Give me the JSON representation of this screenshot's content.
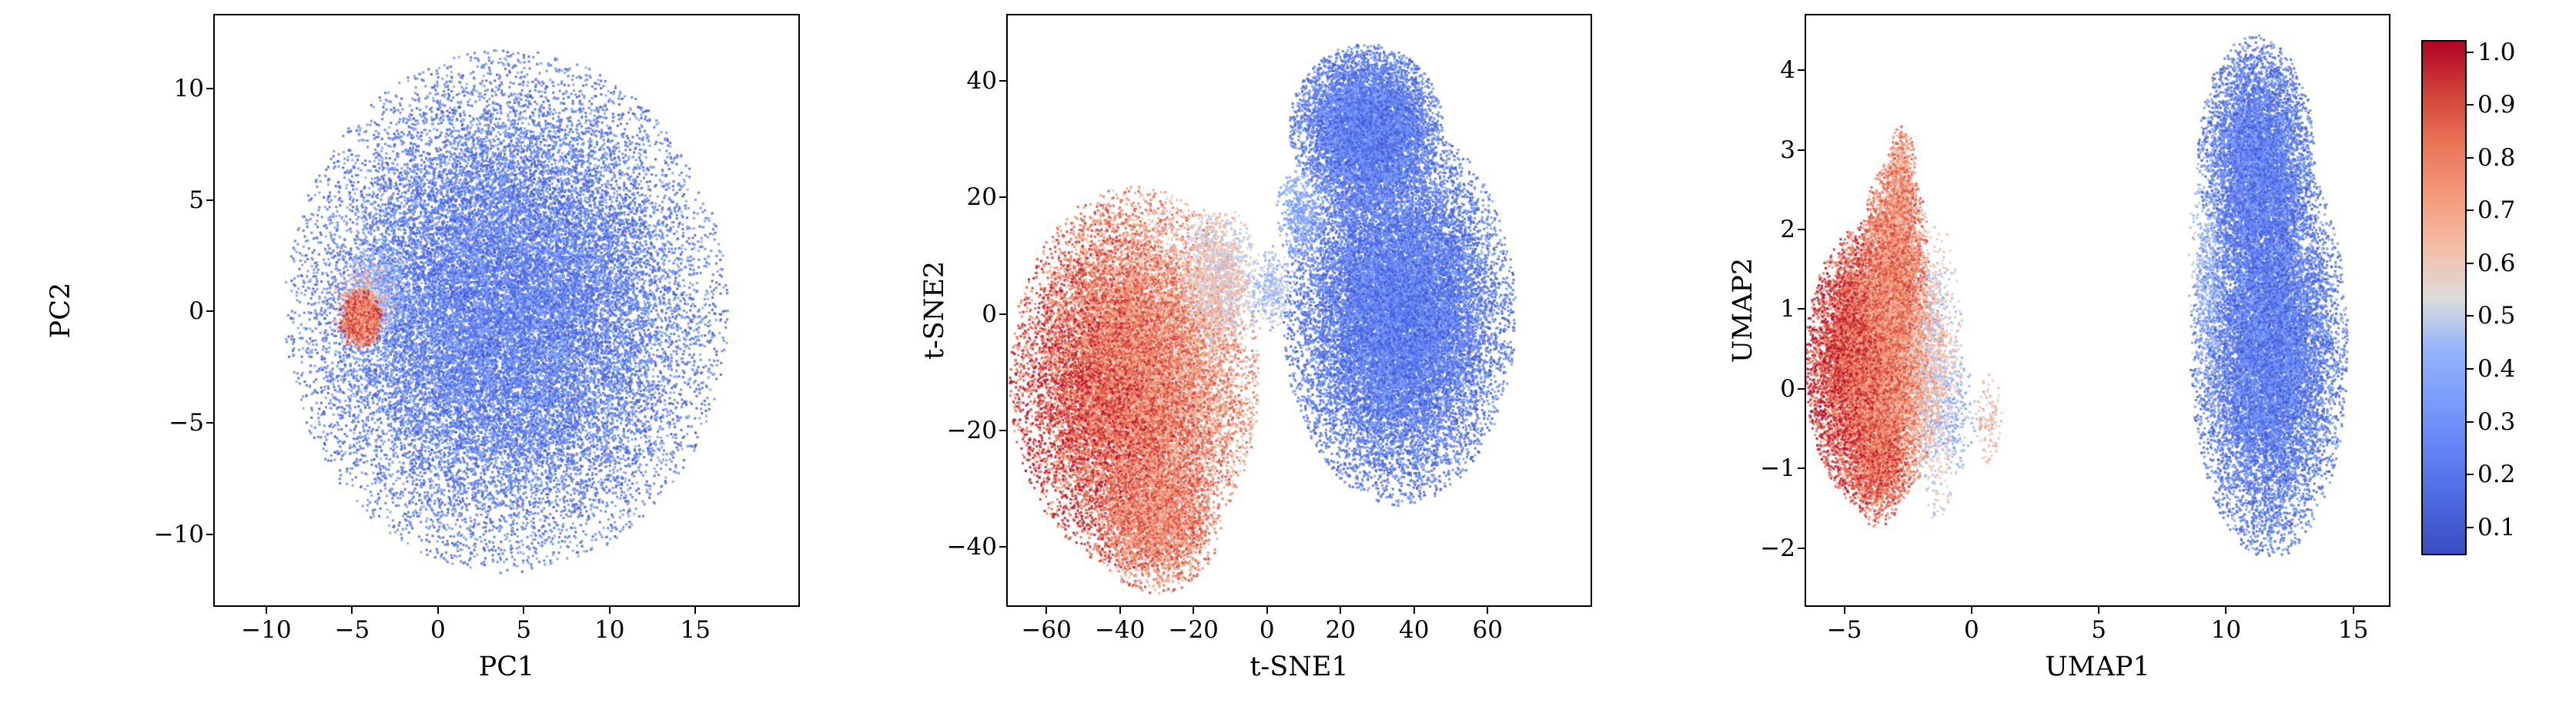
{
  "figure": {
    "background": "#ffffff"
  },
  "colormap": {
    "name": "coolwarm",
    "vmin": 0.05,
    "vmax": 1.02,
    "stops": [
      {
        "t": 0.0,
        "color": "#3b4cc0"
      },
      {
        "t": 0.1,
        "color": "#4b68e0"
      },
      {
        "t": 0.2,
        "color": "#6282f5"
      },
      {
        "t": 0.3,
        "color": "#7a9dfc"
      },
      {
        "t": 0.4,
        "color": "#95b4fb"
      },
      {
        "t": 0.5,
        "color": "#dddcdb"
      },
      {
        "t": 0.6,
        "color": "#f4bda5"
      },
      {
        "t": 0.7,
        "color": "#f49a7b"
      },
      {
        "t": 0.8,
        "color": "#eb7558"
      },
      {
        "t": 0.9,
        "color": "#d14239"
      },
      {
        "t": 1.0,
        "color": "#b40426"
      }
    ]
  },
  "colorbar": {
    "ticks": [
      1.0,
      0.9,
      0.8,
      0.7,
      0.6,
      0.5,
      0.4,
      0.3,
      0.2,
      0.1
    ],
    "tick_labels": [
      "1.0",
      "0.9",
      "0.8",
      "0.7",
      "0.6",
      "0.5",
      "0.4",
      "0.3",
      "0.2",
      "0.1"
    ]
  },
  "chart_data": [
    {
      "type": "scatter",
      "title": "",
      "xlabel": "PC1",
      "ylabel": "PC2",
      "xlim": [
        -13.0,
        21.0
      ],
      "ylim": [
        -13.2,
        13.3
      ],
      "xticks": [
        -10,
        -5,
        0,
        5,
        10,
        15
      ],
      "xtick_labels": [
        "−10",
        "−5",
        "0",
        "5",
        "10",
        "15"
      ],
      "yticks": [
        -10,
        -5,
        0,
        5,
        10
      ],
      "ytick_labels": [
        "−10",
        "−5",
        "0",
        "5",
        "10"
      ],
      "grid": false,
      "legend": false,
      "clusters": [
        {
          "name": "low-value-main-blob",
          "n": 26000,
          "cx": 4.0,
          "cy": 0.0,
          "sx": 5.5,
          "sy": 5.0,
          "clip": 2.35,
          "vlo": 0.08,
          "vhi": 0.4
        },
        {
          "name": "transition-halo",
          "n": 500,
          "cx": -3.6,
          "cy": 1.1,
          "sx": 0.9,
          "sy": 1.0,
          "clip": 2.2,
          "vlo": 0.3,
          "vhi": 0.55
        },
        {
          "name": "high-value-fringe",
          "n": 350,
          "cx": -4.3,
          "cy": 0.3,
          "sx": 0.9,
          "sy": 0.95,
          "clip": 2.2,
          "vlo": 0.5,
          "vhi": 0.8
        },
        {
          "name": "high-value-core",
          "n": 1500,
          "cx": -4.5,
          "cy": -0.3,
          "sx": 0.5,
          "sy": 0.55,
          "clip": 2.5,
          "vlo": 0.6,
          "vhi": 1.0
        }
      ]
    },
    {
      "type": "scatter",
      "title": "",
      "xlabel": "t-SNE1",
      "ylabel": "t-SNE2",
      "xlim": [
        -70.5,
        88.0
      ],
      "ylim": [
        -50.0,
        51.2
      ],
      "xticks": [
        -60,
        -40,
        -20,
        0,
        20,
        40,
        60
      ],
      "xtick_labels": [
        "−60",
        "−40",
        "−20",
        "0",
        "20",
        "40",
        "60"
      ],
      "yticks": [
        -40,
        -20,
        0,
        20,
        40
      ],
      "ytick_labels": [
        "−40",
        "−20",
        "0",
        "20",
        "40"
      ],
      "grid": false,
      "legend": false,
      "clusters": [
        {
          "name": "high-value-cluster",
          "n": 19000,
          "cx": -36,
          "cy": -11,
          "sx": 14.5,
          "sy": 14.0,
          "clip": 2.35,
          "vlo": 0.6,
          "vhi": 1.0,
          "vgx": -0.05,
          "vgy": -0.03
        },
        {
          "name": "high-value-bottom-lumps",
          "n": 2600,
          "cx": -30,
          "cy": -36,
          "sx": 8.0,
          "sy": 5.5,
          "clip": 2.2,
          "vlo": 0.6,
          "vhi": 0.95
        },
        {
          "name": "high-value-light-edge",
          "n": 1100,
          "cx": -13,
          "cy": 7,
          "sx": 4.5,
          "sy": 5.5,
          "clip": 2.2,
          "vlo": 0.45,
          "vhi": 0.7
        },
        {
          "name": "bridge-points",
          "n": 350,
          "cx": 1,
          "cy": 4,
          "sx": 3.0,
          "sy": 3.5,
          "clip": 2.2,
          "vlo": 0.38,
          "vhi": 0.55
        },
        {
          "name": "low-value-cluster",
          "n": 19000,
          "cx": 36,
          "cy": 0,
          "sx": 13.5,
          "sy": 14.0,
          "clip": 2.35,
          "vlo": 0.08,
          "vhi": 0.38
        },
        {
          "name": "low-value-top-lobe",
          "n": 7500,
          "cx": 27,
          "cy": 32,
          "sx": 9.5,
          "sy": 6.5,
          "clip": 2.2,
          "vlo": 0.08,
          "vhi": 0.38
        },
        {
          "name": "low-value-light-specks",
          "n": 450,
          "cx": 9,
          "cy": 17,
          "sx": 3.0,
          "sy": 4.0,
          "clip": 2.2,
          "vlo": 0.3,
          "vhi": 0.48
        }
      ]
    },
    {
      "type": "scatter",
      "title": "",
      "xlabel": "UMAP1",
      "ylabel": "UMAP2",
      "xlim": [
        -6.5,
        16.4
      ],
      "ylim": [
        -2.72,
        4.69
      ],
      "xticks": [
        -5,
        0,
        5,
        10,
        15
      ],
      "xtick_labels": [
        "−5",
        "0",
        "5",
        "10",
        "15"
      ],
      "yticks": [
        -2,
        -1,
        0,
        1,
        2,
        3,
        4
      ],
      "ytick_labels": [
        "−2",
        "−1",
        "0",
        "1",
        "2",
        "3",
        "4"
      ],
      "grid": false,
      "legend": false,
      "clusters": [
        {
          "name": "high-value-main",
          "n": 13500,
          "cx": -3.8,
          "cy": 0.3,
          "sx": 1.2,
          "sy": 0.8,
          "clip": 2.3,
          "vlo": 0.62,
          "vhi": 1.0,
          "vgx": -0.07
        },
        {
          "name": "high-value-taper",
          "n": 3000,
          "cx": -3.0,
          "cy": 1.7,
          "sx": 0.6,
          "sy": 0.55,
          "clip": 2.2,
          "vlo": 0.6,
          "vhi": 0.95
        },
        {
          "name": "high-value-top-tip",
          "n": 700,
          "cx": -2.75,
          "cy": 2.6,
          "sx": 0.3,
          "sy": 0.35,
          "clip": 2.0,
          "vlo": 0.55,
          "vhi": 0.9
        },
        {
          "name": "high-value-bottom-tip",
          "n": 800,
          "cx": -3.6,
          "cy": -1.0,
          "sx": 0.55,
          "sy": 0.35,
          "clip": 2.2,
          "vlo": 0.7,
          "vhi": 1.0
        },
        {
          "name": "transition-right-edge",
          "n": 900,
          "cx": -1.3,
          "cy": 0.2,
          "sx": 0.45,
          "sy": 0.85,
          "clip": 2.2,
          "vlo": 0.42,
          "vhi": 0.68
        },
        {
          "name": "gray-specks",
          "n": 150,
          "cx": -0.6,
          "cy": -0.3,
          "sx": 0.4,
          "sy": 0.4,
          "clip": 2.0,
          "vlo": 0.35,
          "vhi": 0.5
        },
        {
          "name": "small-wisp",
          "n": 120,
          "cx": 0.7,
          "cy": -0.4,
          "sx": 0.25,
          "sy": 0.3,
          "clip": 2.0,
          "vlo": 0.5,
          "vhi": 0.75
        },
        {
          "name": "low-value-main",
          "n": 13000,
          "cx": 11.7,
          "cy": 0.5,
          "sx": 1.35,
          "sy": 1.15,
          "clip": 2.3,
          "vlo": 0.08,
          "vhi": 0.38
        },
        {
          "name": "low-value-top-lobe",
          "n": 6000,
          "cx": 11.2,
          "cy": 2.9,
          "sx": 1.05,
          "sy": 0.7,
          "clip": 2.2,
          "vlo": 0.08,
          "vhi": 0.38
        },
        {
          "name": "low-value-left-light-edge",
          "n": 500,
          "cx": 9.3,
          "cy": 1.4,
          "sx": 0.35,
          "sy": 0.8,
          "clip": 2.2,
          "vlo": 0.36,
          "vhi": 0.52
        }
      ]
    }
  ]
}
